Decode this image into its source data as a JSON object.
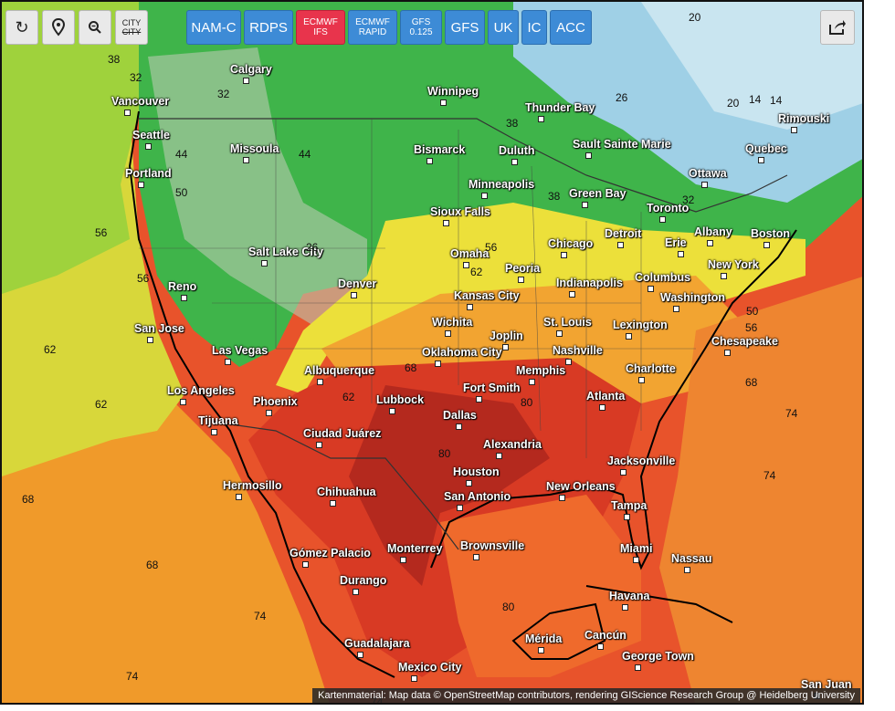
{
  "toolbar": {
    "tools": [
      {
        "name": "refresh-icon",
        "label": ""
      },
      {
        "name": "location-pin-icon",
        "label": ""
      },
      {
        "name": "zoom-out-icon",
        "label": ""
      },
      {
        "name": "city-toggle",
        "label_top": "CITY",
        "label_bottom": "CITY"
      }
    ],
    "models": [
      {
        "label": "NAM-C",
        "active": false
      },
      {
        "label": "RDPS",
        "active": false
      },
      {
        "label_top": "ECMWF",
        "label_bottom": "IFS",
        "active": true
      },
      {
        "label_top": "ECMWF",
        "label_bottom": "RAPID",
        "active": false
      },
      {
        "label_top": "GFS",
        "label_bottom": "0.125",
        "active": false
      },
      {
        "label": "GFS",
        "active": false
      },
      {
        "label": "UK",
        "active": false
      },
      {
        "label": "IC",
        "active": false
      },
      {
        "label": "ACC",
        "active": false
      }
    ],
    "share_icon": "share-icon"
  },
  "colors": {
    "active_model": "#e8344c",
    "model": "#3d8bd6",
    "tool": "#e9e9e9"
  },
  "cities": [
    "Calgary",
    "Vancouver",
    "Seattle",
    "Portland",
    "Missoula",
    "Winnipeg",
    "Thunder Bay",
    "Bismarck",
    "Duluth",
    "Sault Sainte Marie",
    "Rimouski",
    "Quebec",
    "Ottawa",
    "Minneapolis",
    "Green Bay",
    "Toronto",
    "Sioux Falls",
    "Detroit",
    "Albany",
    "Boston",
    "Salt Lake City",
    "Omaha",
    "Chicago",
    "Erie",
    "Reno",
    "Denver",
    "Peoria",
    "Indianapolis",
    "Columbus",
    "New York",
    "Kansas City",
    "Washington",
    "San Jose",
    "Wichita",
    "St. Louis",
    "Lexington",
    "Las Vegas",
    "Joplin",
    "Chesapeake",
    "Oklahoma City",
    "Nashville",
    "Albuquerque",
    "Memphis",
    "Charlotte",
    "Los Angeles",
    "Phoenix",
    "Fort Smith",
    "Atlanta",
    "Lubbock",
    "Dallas",
    "Tijuana",
    "Ciudad Juárez",
    "Alexandria",
    "Jacksonville",
    "Hermosillo",
    "Houston",
    "Chihuahua",
    "New Orleans",
    "San Antonio",
    "Tampa",
    "Gómez Palacio",
    "Monterrey",
    "Brownsville",
    "Miami",
    "Nassau",
    "Durango",
    "Havana",
    "Guadalajara",
    "Cancún",
    "Mérida",
    "George Town",
    "Mexico City",
    "San Juan"
  ],
  "isotherm_labels": [
    "20",
    "14",
    "26",
    "32",
    "38",
    "44",
    "50",
    "56",
    "62",
    "68",
    "74",
    "80"
  ],
  "attribution": "Kartenmaterial: Map data © OpenStreetMap contributors, rendering GIScience Research Group @ Heidelberg University"
}
